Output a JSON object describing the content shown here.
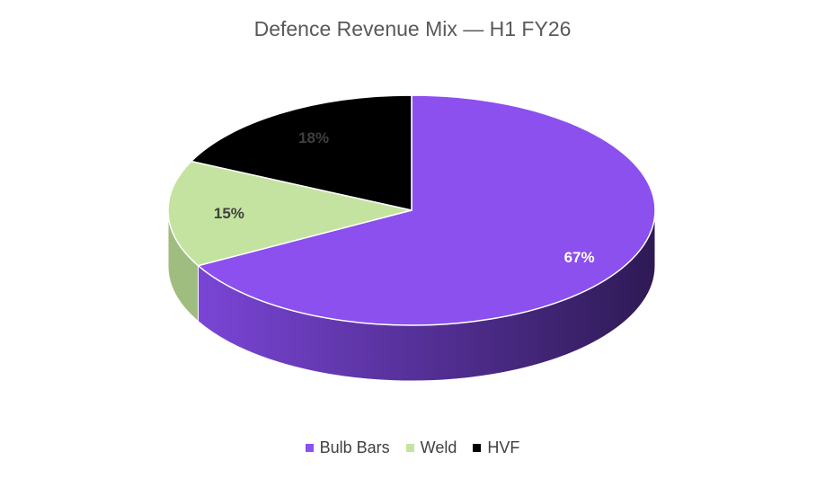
{
  "chart_data": {
    "type": "pie",
    "title": "Defence Revenue Mix — H1 FY26",
    "slices": [
      {
        "label": "Bulb Bars",
        "value": 67,
        "display": "67%",
        "color": "#8B50EE",
        "side_color": "#5A32A3",
        "label_color": "#FFFFFF"
      },
      {
        "label": "Weld",
        "value": 15,
        "display": "15%",
        "color": "#C4E3A0",
        "side_color": "#9FBD7E",
        "label_color": "#404040"
      },
      {
        "label": "HVF",
        "value": 18,
        "display": "18%",
        "color": "#000000",
        "side_color": "#000000",
        "label_color": "#404040"
      }
    ],
    "legend_position": "bottom",
    "style": "3d"
  }
}
